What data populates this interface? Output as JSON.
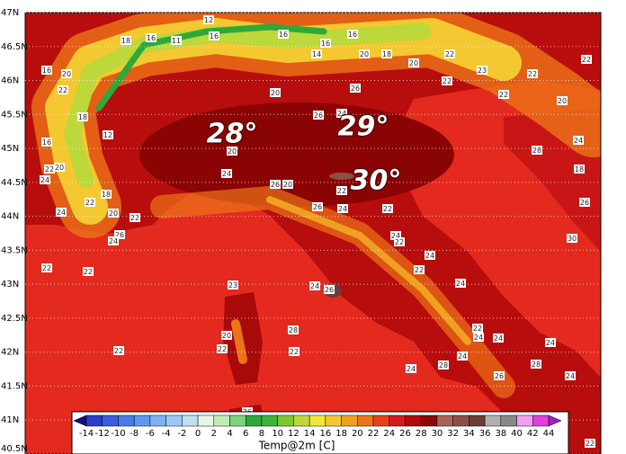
{
  "map": {
    "annotations": [
      "28°",
      "29°",
      "30°"
    ],
    "lat_ticks": [
      {
        "value": 47,
        "label": "47N"
      },
      {
        "value": 46.5,
        "label": "46.5N"
      },
      {
        "value": 46,
        "label": "46N"
      },
      {
        "value": 45.5,
        "label": "45.5N"
      },
      {
        "value": 45,
        "label": "45N"
      },
      {
        "value": 44.5,
        "label": "44.5N"
      },
      {
        "value": 44,
        "label": "44N"
      },
      {
        "value": 43.5,
        "label": "43.5N"
      },
      {
        "value": 43,
        "label": "43N"
      },
      {
        "value": 42.5,
        "label": "42.5N"
      },
      {
        "value": 42,
        "label": "42N"
      },
      {
        "value": 41.5,
        "label": "41.5N"
      },
      {
        "value": 41,
        "label": "41N"
      },
      {
        "value": 40.5,
        "label": "40.5N"
      }
    ],
    "ylim": [
      40.5,
      47
    ],
    "stations": [
      18,
      16,
      12,
      16,
      11,
      16,
      16,
      14,
      16,
      20,
      18,
      20,
      22,
      22,
      23,
      22,
      22,
      20,
      22,
      16,
      20,
      22,
      18,
      12,
      16,
      20,
      22,
      24,
      24,
      22,
      20,
      18,
      22,
      26,
      24,
      22,
      22,
      20,
      24,
      26,
      20,
      22,
      26,
      24,
      22,
      24,
      22,
      24,
      22,
      24,
      22,
      24,
      24,
      28,
      24,
      24,
      20,
      22,
      23,
      28,
      22,
      22,
      24,
      26,
      26,
      26,
      28,
      24,
      24,
      22,
      24,
      28,
      18,
      26,
      30,
      26,
      26,
      20,
      24
    ]
  },
  "colorbar": {
    "title": "Temp@2m [C]",
    "ticks": [
      -14,
      -12,
      -10,
      -8,
      -6,
      -4,
      -2,
      0,
      2,
      4,
      6,
      8,
      10,
      12,
      14,
      16,
      18,
      20,
      22,
      24,
      26,
      28,
      30,
      32,
      34,
      36,
      38,
      40,
      42,
      44
    ],
    "colors": [
      "#2a3ec8",
      "#3a5ede",
      "#4a7ce8",
      "#5c98f0",
      "#7cb2f4",
      "#9cc8f4",
      "#c0e0f6",
      "#e8f6e8",
      "#c0ecb8",
      "#7cd47c",
      "#2ea83a",
      "#3ab43a",
      "#7cc834",
      "#bcd83a",
      "#f0e838",
      "#f4c830",
      "#f0a020",
      "#ec7418",
      "#e6401c",
      "#d21c1c",
      "#b00c0c",
      "#8e0606",
      "#a86458",
      "#8a5048",
      "#6a3c3a",
      "#b0b0b0",
      "#888888",
      "#f0a0f0",
      "#e040e0"
    ],
    "under_color": "#1a0a80",
    "over_color": "#a020c0"
  }
}
